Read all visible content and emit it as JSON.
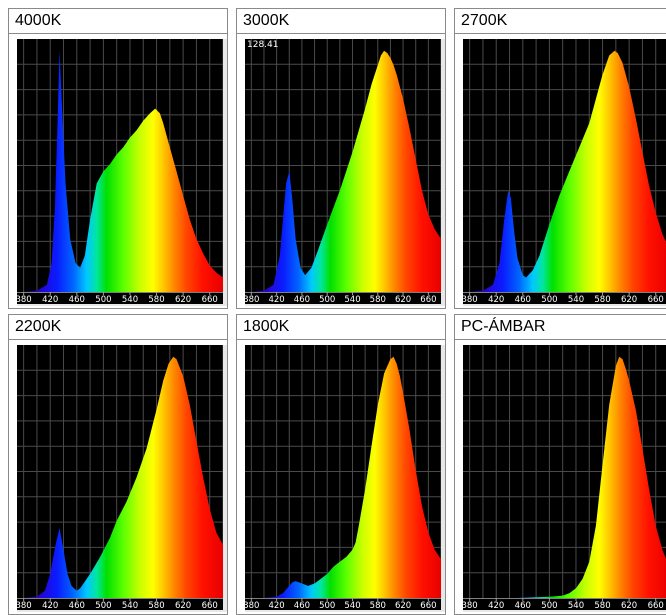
{
  "chart_data": [
    {
      "type": "area",
      "title": "4000K",
      "x_ticks": [
        "380",
        "420",
        "460",
        "500",
        "540",
        "580",
        "620",
        "660"
      ],
      "xlim": [
        370,
        680
      ],
      "ylim": [
        0,
        1.04
      ],
      "grid": true,
      "x": [
        370,
        380,
        400,
        415,
        422,
        427,
        431,
        434,
        438,
        443,
        450,
        458,
        465,
        472,
        480,
        490,
        500,
        510,
        520,
        530,
        540,
        550,
        560,
        570,
        578,
        585,
        590,
        600,
        610,
        620,
        630,
        640,
        650,
        660,
        670,
        680
      ],
      "y": [
        0.0,
        0.0,
        0.005,
        0.03,
        0.12,
        0.35,
        0.7,
        1.0,
        0.75,
        0.45,
        0.22,
        0.12,
        0.1,
        0.15,
        0.3,
        0.45,
        0.5,
        0.53,
        0.57,
        0.6,
        0.64,
        0.67,
        0.71,
        0.74,
        0.76,
        0.74,
        0.7,
        0.6,
        0.5,
        0.4,
        0.3,
        0.22,
        0.16,
        0.11,
        0.08,
        0.06
      ]
    },
    {
      "type": "area",
      "title": "3000K",
      "annotation": "128.41",
      "x_ticks": [
        "380",
        "420",
        "460",
        "500",
        "540",
        "580",
        "620",
        "660"
      ],
      "xlim": [
        370,
        680
      ],
      "ylim": [
        0,
        1.04
      ],
      "grid": true,
      "x": [
        370,
        380,
        400,
        415,
        425,
        430,
        435,
        440,
        445,
        450,
        458,
        465,
        475,
        485,
        500,
        510,
        520,
        530,
        540,
        550,
        560,
        570,
        580,
        585,
        590,
        595,
        600,
        605,
        610,
        620,
        630,
        640,
        650,
        660,
        670,
        680
      ],
      "y": [
        0.0,
        0.0,
        0.005,
        0.03,
        0.15,
        0.3,
        0.45,
        0.5,
        0.38,
        0.22,
        0.1,
        0.07,
        0.1,
        0.17,
        0.28,
        0.35,
        0.42,
        0.5,
        0.58,
        0.67,
        0.76,
        0.86,
        0.94,
        0.98,
        1.0,
        0.99,
        0.97,
        0.94,
        0.9,
        0.8,
        0.68,
        0.55,
        0.42,
        0.32,
        0.26,
        0.22
      ]
    },
    {
      "type": "area",
      "title": "2700K",
      "x_ticks": [
        "380",
        "420",
        "460",
        "500",
        "540",
        "580",
        "620",
        "660"
      ],
      "xlim": [
        370,
        680
      ],
      "ylim": [
        0,
        1.04
      ],
      "grid": true,
      "x": [
        370,
        380,
        400,
        415,
        425,
        432,
        438,
        442,
        447,
        452,
        460,
        465,
        475,
        485,
        500,
        515,
        530,
        545,
        560,
        570,
        580,
        590,
        598,
        603,
        610,
        620,
        630,
        640,
        650,
        660,
        670,
        680
      ],
      "y": [
        0.0,
        0.0,
        0.005,
        0.03,
        0.12,
        0.3,
        0.42,
        0.39,
        0.25,
        0.14,
        0.07,
        0.06,
        0.09,
        0.15,
        0.28,
        0.4,
        0.5,
        0.6,
        0.7,
        0.8,
        0.9,
        0.98,
        1.0,
        0.99,
        0.95,
        0.85,
        0.72,
        0.58,
        0.44,
        0.33,
        0.24,
        0.18
      ]
    },
    {
      "type": "area",
      "title": "2200K",
      "x_ticks": [
        "380",
        "420",
        "460",
        "500",
        "540",
        "580",
        "620",
        "660"
      ],
      "xlim": [
        370,
        680
      ],
      "ylim": [
        0,
        1.04
      ],
      "grid": true,
      "x": [
        370,
        380,
        400,
        412,
        420,
        428,
        434,
        440,
        446,
        452,
        460,
        465,
        470,
        480,
        495,
        510,
        520,
        535,
        550,
        565,
        580,
        590,
        598,
        605,
        610,
        620,
        630,
        640,
        650,
        660,
        670,
        680
      ],
      "y": [
        0.0,
        0.0,
        0.005,
        0.03,
        0.1,
        0.22,
        0.29,
        0.2,
        0.1,
        0.05,
        0.03,
        0.04,
        0.06,
        0.1,
        0.17,
        0.25,
        0.32,
        0.4,
        0.5,
        0.62,
        0.78,
        0.9,
        0.97,
        1.0,
        0.99,
        0.92,
        0.8,
        0.65,
        0.5,
        0.37,
        0.27,
        0.22
      ]
    },
    {
      "type": "area",
      "title": "1800K",
      "x_ticks": [
        "380",
        "420",
        "460",
        "500",
        "540",
        "580",
        "620",
        "660"
      ],
      "xlim": [
        370,
        680
      ],
      "ylim": [
        0,
        1.04
      ],
      "grid": true,
      "x": [
        370,
        380,
        400,
        420,
        430,
        440,
        445,
        450,
        455,
        460,
        470,
        480,
        490,
        500,
        510,
        520,
        530,
        540,
        545,
        550,
        560,
        570,
        580,
        590,
        600,
        605,
        610,
        615,
        620,
        630,
        640,
        650,
        660,
        670,
        680
      ],
      "y": [
        0.0,
        0.0,
        0.0,
        0.005,
        0.02,
        0.05,
        0.065,
        0.07,
        0.065,
        0.06,
        0.05,
        0.06,
        0.08,
        0.1,
        0.13,
        0.15,
        0.17,
        0.2,
        0.23,
        0.3,
        0.45,
        0.63,
        0.8,
        0.93,
        0.99,
        1.0,
        0.97,
        0.92,
        0.85,
        0.7,
        0.53,
        0.38,
        0.27,
        0.2,
        0.16
      ]
    },
    {
      "type": "area",
      "title": "PC-ÁMBAR",
      "x_ticks": [
        "380",
        "420",
        "460",
        "500",
        "540",
        "580",
        "620",
        "660"
      ],
      "xlim": [
        370,
        680
      ],
      "ylim": [
        0,
        1.04
      ],
      "grid": true,
      "x": [
        370,
        380,
        400,
        450,
        500,
        520,
        530,
        540,
        550,
        560,
        570,
        580,
        590,
        600,
        605,
        610,
        615,
        620,
        630,
        640,
        650,
        660,
        670,
        680
      ],
      "y": [
        0.0,
        0.0,
        0.0,
        0.0,
        0.005,
        0.01,
        0.02,
        0.04,
        0.08,
        0.15,
        0.3,
        0.55,
        0.8,
        0.96,
        1.0,
        0.99,
        0.95,
        0.9,
        0.78,
        0.62,
        0.45,
        0.3,
        0.2,
        0.13
      ]
    }
  ]
}
